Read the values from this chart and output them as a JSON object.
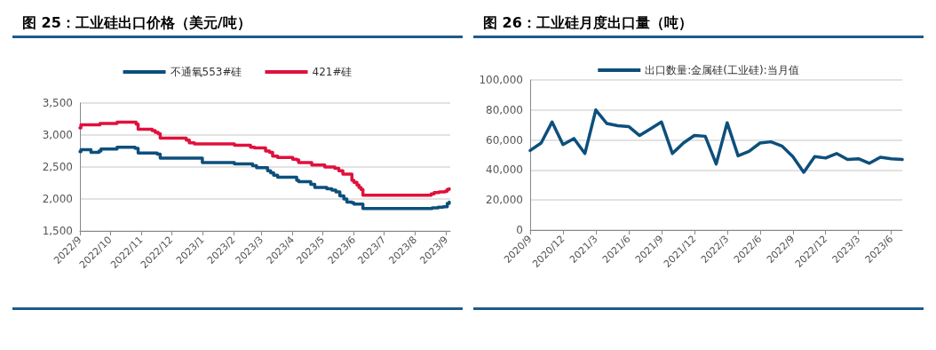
{
  "chart_data": [
    {
      "type": "step",
      "title": "图 25：工业硅出口价格（美元/吨）",
      "legend": "top",
      "grid": "y",
      "marker": "none",
      "line_style": "solid",
      "xlim": [
        "2022-09-01",
        "2023-09-05"
      ],
      "ylim": [
        1500,
        3500
      ],
      "yticks": [
        {
          "value": 1500,
          "label": "1,500"
        },
        {
          "value": 2000,
          "label": "2,000"
        },
        {
          "value": 2500,
          "label": "2,500"
        },
        {
          "value": 3000,
          "label": "3,000"
        },
        {
          "value": 3500,
          "label": "3,500"
        }
      ],
      "xticks": [
        {
          "value": "2022-09-01",
          "label": "2022/9"
        },
        {
          "value": "2022-10-01",
          "label": "2022/10"
        },
        {
          "value": "2022-11-01",
          "label": "2022/11"
        },
        {
          "value": "2022-12-01",
          "label": "2022/12"
        },
        {
          "value": "2023-01-01",
          "label": "2023/1"
        },
        {
          "value": "2023-02-01",
          "label": "2023/2"
        },
        {
          "value": "2023-03-01",
          "label": "2023/3"
        },
        {
          "value": "2023-04-01",
          "label": "2023/4"
        },
        {
          "value": "2023-05-01",
          "label": "2023/5"
        },
        {
          "value": "2023-06-01",
          "label": "2023/6"
        },
        {
          "value": "2023-07-01",
          "label": "2023/7"
        },
        {
          "value": "2023-08-01",
          "label": "2023/8"
        },
        {
          "value": "2023-09-01",
          "label": "2023/9"
        }
      ],
      "series": [
        {
          "name": "不通氧553#硅",
          "color": "#0d4f7c",
          "x": [
            "2022-09-01",
            "2022-09-02",
            "2022-09-12",
            "2022-09-20",
            "2022-09-22",
            "2022-10-08",
            "2022-10-26",
            "2022-10-29",
            "2022-11-17",
            "2022-11-20",
            "2023-01-01",
            "2023-02-02",
            "2023-02-20",
            "2023-02-24",
            "2023-03-07",
            "2023-03-10",
            "2023-03-13",
            "2023-03-17",
            "2023-04-05",
            "2023-04-07",
            "2023-04-19",
            "2023-04-23",
            "2023-05-05",
            "2023-05-10",
            "2023-05-14",
            "2023-05-18",
            "2023-05-22",
            "2023-05-25",
            "2023-05-30",
            "2023-06-01",
            "2023-06-10",
            "2023-08-18",
            "2023-08-24",
            "2023-08-29",
            "2023-09-02",
            "2023-09-04"
          ],
          "values": [
            2740,
            2770,
            2730,
            2750,
            2780,
            2810,
            2790,
            2720,
            2700,
            2640,
            2570,
            2550,
            2520,
            2490,
            2440,
            2410,
            2370,
            2340,
            2290,
            2270,
            2230,
            2180,
            2160,
            2140,
            2110,
            2050,
            2000,
            1950,
            1940,
            1920,
            1850,
            1860,
            1870,
            1880,
            1930,
            1950
          ]
        },
        {
          "name": "421#硅",
          "color": "#e0103c",
          "x": [
            "2022-09-01",
            "2022-09-02",
            "2022-09-21",
            "2022-10-08",
            "2022-10-27",
            "2022-10-29",
            "2022-11-12",
            "2022-11-15",
            "2022-11-18",
            "2022-11-20",
            "2022-12-16",
            "2022-12-19",
            "2022-12-24",
            "2023-02-02",
            "2023-02-18",
            "2023-02-22",
            "2023-03-05",
            "2023-03-09",
            "2023-03-12",
            "2023-03-17",
            "2023-04-01",
            "2023-04-05",
            "2023-04-07",
            "2023-04-20",
            "2023-05-03",
            "2023-05-13",
            "2023-05-17",
            "2023-05-21",
            "2023-05-30",
            "2023-06-01",
            "2023-06-04",
            "2023-06-06",
            "2023-06-08",
            "2023-06-10",
            "2023-08-17",
            "2023-08-20",
            "2023-08-25",
            "2023-08-31",
            "2023-09-02",
            "2023-09-04"
          ],
          "values": [
            3110,
            3160,
            3180,
            3200,
            3170,
            3090,
            3070,
            3040,
            3020,
            2950,
            2920,
            2880,
            2860,
            2840,
            2810,
            2800,
            2750,
            2730,
            2670,
            2650,
            2620,
            2610,
            2570,
            2530,
            2500,
            2480,
            2440,
            2390,
            2290,
            2260,
            2220,
            2180,
            2150,
            2060,
            2080,
            2100,
            2110,
            2120,
            2150,
            2160
          ]
        }
      ]
    },
    {
      "type": "line",
      "title": "图 26：工业硅月度出口量（吨）",
      "legend": "top",
      "grid": "y",
      "marker": "none",
      "line_style": "solid",
      "categories": [
        "2020/9",
        null,
        null,
        "2020/12",
        null,
        null,
        "2021/3",
        null,
        null,
        "2021/6",
        null,
        null,
        "2021/9",
        null,
        null,
        "2021/12",
        null,
        null,
        "2022/3",
        null,
        null,
        "2022/6",
        null,
        null,
        "2022/9",
        null,
        null,
        "2022/12",
        null,
        null,
        "2023/3",
        null,
        null,
        "2023/6",
        null
      ],
      "ylim": [
        0,
        100000
      ],
      "yticks": [
        0,
        {
          "value": 20000,
          "label": "20,000"
        },
        {
          "value": 40000,
          "label": "40,000"
        },
        {
          "value": 60000,
          "label": "60,000"
        },
        {
          "value": 80000,
          "label": "80,000"
        },
        {
          "value": 100000,
          "label": "100,000"
        }
      ],
      "series": [
        {
          "name": "出口数量:金属硅(工业硅):当月值",
          "color": "#0d4f7c",
          "values": [
            53000,
            58000,
            72000,
            57000,
            61000,
            51000,
            80000,
            71000,
            69500,
            69000,
            63000,
            67500,
            72000,
            51000,
            58000,
            63000,
            62500,
            44000,
            71500,
            49500,
            52500,
            58000,
            58800,
            56000,
            49000,
            38500,
            49000,
            48000,
            51000,
            47000,
            47500,
            44500,
            48500,
            47500,
            47000
          ]
        }
      ]
    }
  ]
}
